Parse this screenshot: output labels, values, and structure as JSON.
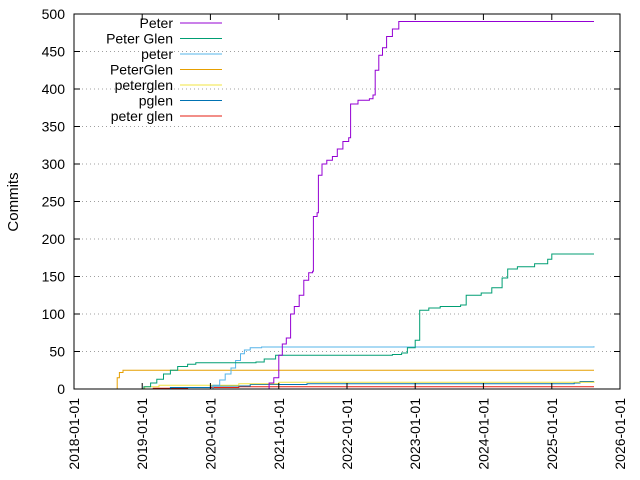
{
  "chart_data": {
    "type": "line",
    "title": "",
    "xlabel": "",
    "ylabel": "Commits",
    "ylim": [
      0,
      500
    ],
    "xlim": [
      "2018-01-01",
      "2026-01-01"
    ],
    "grid": "horizontal dotted",
    "legend_placement": "top-left",
    "y_ticks": [
      "0",
      "50",
      "100",
      "150",
      "200",
      "250",
      "300",
      "350",
      "400",
      "450",
      "500"
    ],
    "x_ticks": [
      "2018-01-01",
      "2019-01-01",
      "2020-01-01",
      "2021-01-01",
      "2022-01-01",
      "2023-01-01",
      "2024-01-01",
      "2025-01-01",
      "2026-01-01"
    ],
    "series": [
      {
        "name": "Peter",
        "color": "#9400d3",
        "points": [
          [
            "2020-10-25",
            0
          ],
          [
            "2020-11-10",
            8
          ],
          [
            "2020-12-05",
            15
          ],
          [
            "2021-01-01",
            45
          ],
          [
            "2021-01-20",
            60
          ],
          [
            "2021-02-10",
            68
          ],
          [
            "2021-03-05",
            100
          ],
          [
            "2021-03-25",
            110
          ],
          [
            "2021-04-20",
            125
          ],
          [
            "2021-05-15",
            145
          ],
          [
            "2021-06-10",
            155
          ],
          [
            "2021-07-01",
            157
          ],
          [
            "2021-07-05",
            230
          ],
          [
            "2021-07-25",
            235
          ],
          [
            "2021-08-01",
            285
          ],
          [
            "2021-08-20",
            300
          ],
          [
            "2021-09-15",
            305
          ],
          [
            "2021-10-15",
            310
          ],
          [
            "2021-11-10",
            320
          ],
          [
            "2021-12-10",
            330
          ],
          [
            "2022-01-10",
            335
          ],
          [
            "2022-01-20",
            380
          ],
          [
            "2022-03-01",
            385
          ],
          [
            "2022-05-01",
            387
          ],
          [
            "2022-05-20",
            392
          ],
          [
            "2022-06-01",
            425
          ],
          [
            "2022-06-20",
            445
          ],
          [
            "2022-07-10",
            455
          ],
          [
            "2022-08-01",
            470
          ],
          [
            "2022-09-01",
            480
          ],
          [
            "2022-10-05",
            490
          ],
          [
            "2025-08-15",
            490
          ]
        ]
      },
      {
        "name": "Peter Glen",
        "color": "#009e73",
        "points": [
          [
            "2018-12-20",
            0
          ],
          [
            "2019-01-10",
            3
          ],
          [
            "2019-02-15",
            8
          ],
          [
            "2019-03-20",
            13
          ],
          [
            "2019-04-25",
            20
          ],
          [
            "2019-06-01",
            25
          ],
          [
            "2019-07-10",
            30
          ],
          [
            "2019-09-01",
            33
          ],
          [
            "2019-10-15",
            35
          ],
          [
            "2020-09-01",
            36
          ],
          [
            "2020-10-15",
            40
          ],
          [
            "2020-12-15",
            45
          ],
          [
            "2022-09-01",
            46
          ],
          [
            "2022-10-20",
            48
          ],
          [
            "2022-11-20",
            55
          ],
          [
            "2023-01-01",
            65
          ],
          [
            "2023-01-25",
            105
          ],
          [
            "2023-03-15",
            108
          ],
          [
            "2023-05-15",
            110
          ],
          [
            "2023-09-01",
            112
          ],
          [
            "2023-10-01",
            125
          ],
          [
            "2023-12-20",
            128
          ],
          [
            "2024-02-15",
            135
          ],
          [
            "2024-04-10",
            148
          ],
          [
            "2024-05-10",
            160
          ],
          [
            "2024-07-01",
            163
          ],
          [
            "2024-10-01",
            167
          ],
          [
            "2024-12-10",
            173
          ],
          [
            "2025-01-01",
            180
          ],
          [
            "2025-08-15",
            180
          ]
        ]
      },
      {
        "name": "peter",
        "color": "#56b4e9",
        "points": [
          [
            "2019-12-15",
            0
          ],
          [
            "2020-01-15",
            5
          ],
          [
            "2020-02-20",
            12
          ],
          [
            "2020-03-20",
            20
          ],
          [
            "2020-04-20",
            28
          ],
          [
            "2020-05-15",
            38
          ],
          [
            "2020-06-10",
            47
          ],
          [
            "2020-07-01",
            52
          ],
          [
            "2020-08-01",
            55
          ],
          [
            "2020-10-01",
            56
          ],
          [
            "2025-08-15",
            57
          ]
        ]
      },
      {
        "name": "PeterGlen",
        "color": "#e69f00",
        "points": [
          [
            "2018-08-10",
            0
          ],
          [
            "2018-08-20",
            15
          ],
          [
            "2018-09-01",
            22
          ],
          [
            "2018-09-20",
            25
          ],
          [
            "2025-08-15",
            25
          ]
        ]
      },
      {
        "name": "peterglen",
        "color": "#f0e442",
        "points": [
          [
            "2018-12-01",
            0
          ],
          [
            "2019-01-15",
            3
          ],
          [
            "2019-04-01",
            5
          ],
          [
            "2020-06-01",
            7
          ],
          [
            "2021-01-01",
            9
          ],
          [
            "2025-08-15",
            10
          ]
        ]
      },
      {
        "name": "pglen",
        "color": "#0072b2",
        "points": [
          [
            "2019-01-01",
            0
          ],
          [
            "2019-06-01",
            2
          ],
          [
            "2020-01-01",
            4
          ],
          [
            "2020-08-01",
            6
          ],
          [
            "2021-06-01",
            7
          ],
          [
            "2025-05-01",
            8
          ],
          [
            "2025-06-01",
            10
          ],
          [
            "2025-08-15",
            10
          ]
        ]
      },
      {
        "name": "peter glen",
        "color": "#e51e10",
        "points": [
          [
            "2018-12-01",
            0
          ],
          [
            "2019-03-01",
            1
          ],
          [
            "2019-09-01",
            2
          ],
          [
            "2020-06-01",
            3
          ],
          [
            "2025-08-15",
            3
          ]
        ]
      }
    ]
  }
}
